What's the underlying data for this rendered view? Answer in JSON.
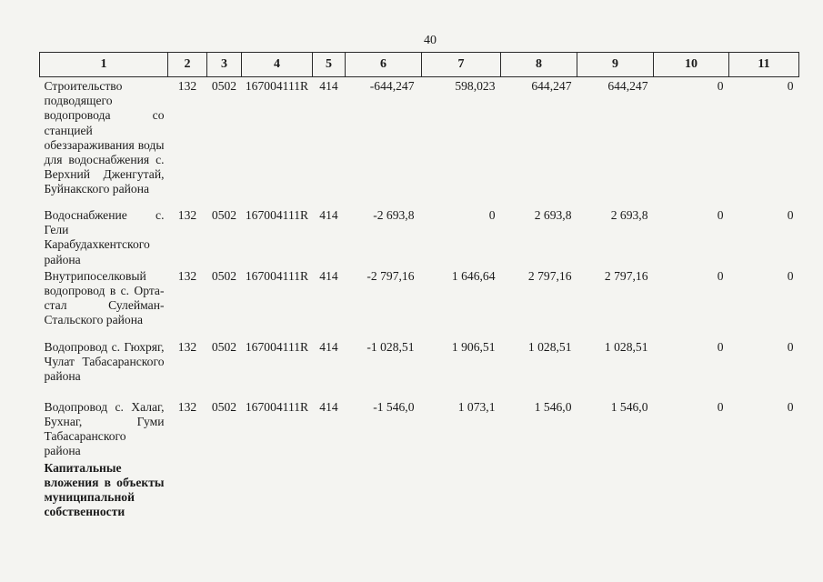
{
  "page_number": "40",
  "columns": [
    "1",
    "2",
    "3",
    "4",
    "5",
    "6",
    "7",
    "8",
    "9",
    "10",
    "11"
  ],
  "rows": [
    {
      "name": "Строительство подводящего водопровода со станцией обеззараживания воды для водоснабжения с. Верхний Дженгутай, Буйнакского района",
      "c2": "132",
      "c3": "0502",
      "c4": "167004111R",
      "c5": "414",
      "c6": "-644,247",
      "c7": "598,023",
      "c8": "644,247",
      "c9": "644,247",
      "c10": "0",
      "c11": "0"
    },
    {
      "name": "Водоснабжение с. Гели Карабудахкентского района",
      "c2": "132",
      "c3": "0502",
      "c4": "167004111R",
      "c5": "414",
      "c6": "-2 693,8",
      "c7": "0",
      "c8": "2 693,8",
      "c9": "2 693,8",
      "c10": "0",
      "c11": "0"
    },
    {
      "name": "Внутрипоселковый водопровод в с. Орта-стал Сулейман-Стальского района",
      "c2": "132",
      "c3": "0502",
      "c4": "167004111R",
      "c5": "414",
      "c6": "-2 797,16",
      "c7": "1 646,64",
      "c8": "2 797,16",
      "c9": "2 797,16",
      "c10": "0",
      "c11": "0"
    },
    {
      "name": "Водопровод с. Гюхряг, Чулат Табасаранского района",
      "c2": "132",
      "c3": "0502",
      "c4": "167004111R",
      "c5": "414",
      "c6": "-1 028,51",
      "c7": "1 906,51",
      "c8": "1 028,51",
      "c9": "1 028,51",
      "c10": "0",
      "c11": "0"
    },
    {
      "name": "Водопровод с. Халаг, Бухнаг, Гуми Табасаранского района",
      "c2": "132",
      "c3": "0502",
      "c4": "167004111R",
      "c5": "414",
      "c6": "-1 546,0",
      "c7": "1 073,1",
      "c8": "1 546,0",
      "c9": "1 546,0",
      "c10": "0",
      "c11": "0"
    }
  ],
  "section_heading": "Капитальные вложения в объекты муниципальной собственности"
}
